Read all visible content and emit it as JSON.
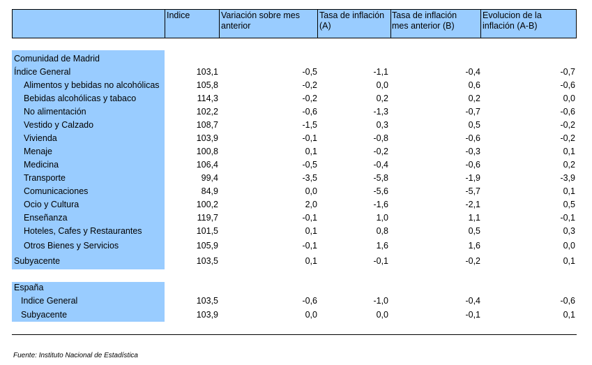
{
  "header": {
    "col0": "",
    "col1": "Indice",
    "col2_l1": "Variación sobre mes",
    "col2_l2": "anterior",
    "col3_l1": "Tasa de inflación",
    "col3_l2": "(A)",
    "col4_l1": "Tasa de inflación",
    "col4_l2": "mes anterior (B)",
    "col5_l1": "Evolucion de la",
    "col5_l2": "inflación (A-B)"
  },
  "madrid": {
    "title": "Comunidad de Madrid",
    "rows": [
      {
        "label": "Índice General",
        "indice": "103,1",
        "variacion": "-0,5",
        "tasa_a": "-1,1",
        "tasa_b": "-0,4",
        "evolucion": "-0,7"
      },
      {
        "label": "Alimentos y bebidas no alcohólicas",
        "indice": "105,8",
        "variacion": "-0,2",
        "tasa_a": "0,0",
        "tasa_b": "0,6",
        "evolucion": "-0,6"
      },
      {
        "label": "Bebidas alcohólicas y tabaco",
        "indice": "114,3",
        "variacion": "-0,2",
        "tasa_a": "0,2",
        "tasa_b": "0,2",
        "evolucion": "0,0"
      },
      {
        "label": "No alimentación",
        "indice": "102,2",
        "variacion": "-0,6",
        "tasa_a": "-1,3",
        "tasa_b": "-0,7",
        "evolucion": "-0,6"
      },
      {
        "label": "Vestido y Calzado",
        "indice": "108,7",
        "variacion": "-1,5",
        "tasa_a": "0,3",
        "tasa_b": "0,5",
        "evolucion": "-0,2"
      },
      {
        "label": "Vivienda",
        "indice": "103,9",
        "variacion": "-0,1",
        "tasa_a": "-0,8",
        "tasa_b": "-0,6",
        "evolucion": "-0,2"
      },
      {
        "label": "Menaje",
        "indice": "100,8",
        "variacion": "0,1",
        "tasa_a": "-0,2",
        "tasa_b": "-0,3",
        "evolucion": "0,1"
      },
      {
        "label": "Medicina",
        "indice": "106,4",
        "variacion": "-0,5",
        "tasa_a": "-0,4",
        "tasa_b": "-0,6",
        "evolucion": "0,2"
      },
      {
        "label": "Transporte",
        "indice": "99,4",
        "variacion": "-3,5",
        "tasa_a": "-5,8",
        "tasa_b": "-1,9",
        "evolucion": "-3,9"
      },
      {
        "label": "Comunicaciones",
        "indice": "84,9",
        "variacion": "0,0",
        "tasa_a": "-5,6",
        "tasa_b": "-5,7",
        "evolucion": "0,1"
      },
      {
        "label": "Ocio y Cultura",
        "indice": "100,2",
        "variacion": "2,0",
        "tasa_a": "-1,6",
        "tasa_b": "-2,1",
        "evolucion": "0,5"
      },
      {
        "label": "Enseñanza",
        "indice": "119,7",
        "variacion": "-0,1",
        "tasa_a": "1,0",
        "tasa_b": "1,1",
        "evolucion": "-0,1"
      },
      {
        "label": "Hoteles, Cafes y Restaurantes",
        "indice": "101,5",
        "variacion": "0,1",
        "tasa_a": "0,8",
        "tasa_b": "0,5",
        "evolucion": "0,3"
      },
      {
        "label": "Otros Bienes y Servicios",
        "indice": "105,9",
        "variacion": "-0,1",
        "tasa_a": "1,6",
        "tasa_b": "1,6",
        "evolucion": "0,0"
      },
      {
        "label": "Subyacente",
        "indice": "103,5",
        "variacion": "0,1",
        "tasa_a": "-0,1",
        "tasa_b": "-0,2",
        "evolucion": "0,1"
      }
    ]
  },
  "espana": {
    "title": "España",
    "rows": [
      {
        "label": "Indice General",
        "indice": "103,5",
        "variacion": "-0,6",
        "tasa_a": "-1,0",
        "tasa_b": "-0,4",
        "evolucion": "-0,6"
      },
      {
        "label": "Subyacente",
        "indice": "103,9",
        "variacion": "0,0",
        "tasa_a": "0,0",
        "tasa_b": "-0,1",
        "evolucion": "0,1"
      }
    ]
  },
  "source": "Fuente: Instituto Nacional de Estadística",
  "colors": {
    "band": "#99ccff",
    "rule": "#000000"
  }
}
